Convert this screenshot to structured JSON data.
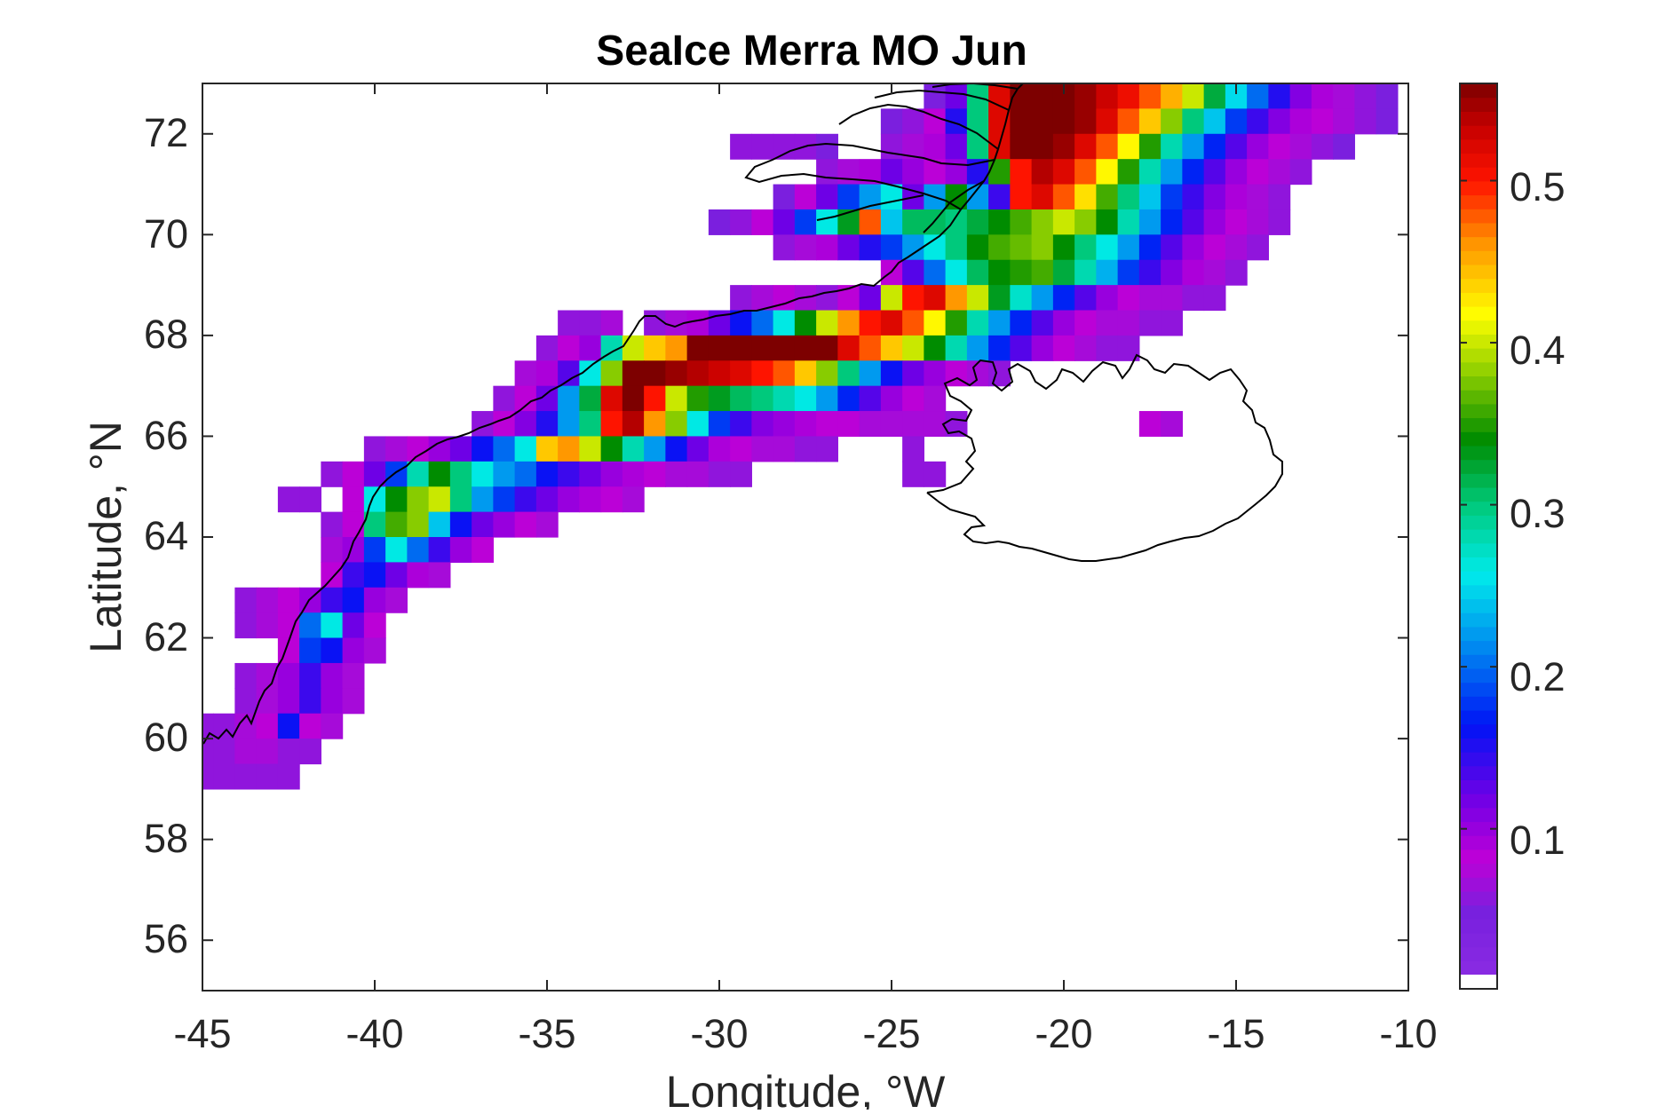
{
  "chart_data": {
    "type": "heatmap",
    "title": "SeaIce Merra MO Jun",
    "xlabel": "Longitude, °W",
    "ylabel": "Latitude, °N",
    "xlim": [
      -45,
      -10
    ],
    "ylim": [
      55,
      73
    ],
    "x_ticks": [
      "-45",
      "-40",
      "-35",
      "-30",
      "-25",
      "-20",
      "-15",
      "-10"
    ],
    "y_ticks": [
      "56",
      "58",
      "60",
      "62",
      "64",
      "66",
      "68",
      "70",
      "72"
    ],
    "colorbar": {
      "colormap": "jet-like (purple → blue → cyan → green → yellow → red → dark red)",
      "range": [
        0.01,
        0.56
      ],
      "ticks": [
        "0.1",
        "0.2",
        "0.3",
        "0.4",
        "0.5"
      ],
      "nodata_color": "#ffffff"
    },
    "grid": false,
    "cell_size_deg": {
      "lon": 0.625,
      "lat": 0.5
    },
    "cells": [
      {
        "lat": 72.75,
        "lons": [
          -23.75,
          -23.125,
          -22.5,
          -21.875,
          -21.25,
          -20.625,
          -20.0,
          -19.375,
          -18.75,
          -18.125,
          -17.5,
          -16.875,
          -16.25,
          -15.625,
          -15.0,
          -14.375,
          -13.75,
          -13.125,
          -12.5,
          -11.875,
          -11.25,
          -10.625
        ],
        "values": [
          0.05,
          0.12,
          0.3,
          0.52,
          0.56,
          0.56,
          0.56,
          0.55,
          0.53,
          0.51,
          0.48,
          0.45,
          0.4,
          0.32,
          0.25,
          0.2,
          0.15,
          0.11,
          0.09,
          0.07,
          0.06,
          0.05
        ]
      },
      {
        "lat": 72.25,
        "lons": [
          -25.0,
          -24.375,
          -23.75,
          -23.125,
          -22.5,
          -21.875,
          -21.25,
          -20.625,
          -20.0,
          -19.375,
          -18.75,
          -18.125,
          -17.5,
          -16.875,
          -16.25,
          -15.625,
          -15.0,
          -14.375,
          -13.75,
          -13.125,
          -12.5,
          -11.875,
          -11.25,
          -10.625
        ],
        "values": [
          0.05,
          0.06,
          0.08,
          0.15,
          0.3,
          0.52,
          0.56,
          0.56,
          0.56,
          0.55,
          0.52,
          0.48,
          0.44,
          0.38,
          0.3,
          0.24,
          0.18,
          0.14,
          0.11,
          0.09,
          0.08,
          0.07,
          0.06,
          0.05
        ]
      },
      {
        "lat": 71.75,
        "lons": [
          -29.375,
          -28.75,
          -28.125,
          -27.5,
          -26.875,
          -25.0,
          -24.375,
          -23.75,
          -23.125,
          -22.5,
          -21.875,
          -21.25,
          -20.625,
          -20.0,
          -19.375,
          -18.75,
          -18.125,
          -17.5,
          -16.875,
          -16.25,
          -15.625,
          -15.0,
          -14.375,
          -13.75,
          -13.125,
          -12.5,
          -11.875
        ],
        "values": [
          0.06,
          0.06,
          0.06,
          0.06,
          0.05,
          0.06,
          0.07,
          0.09,
          0.12,
          0.3,
          0.52,
          0.56,
          0.56,
          0.55,
          0.52,
          0.48,
          0.42,
          0.35,
          0.28,
          0.22,
          0.17,
          0.13,
          0.1,
          0.08,
          0.07,
          0.06,
          0.05
        ]
      },
      {
        "lat": 71.25,
        "lons": [
          -26.875,
          -26.25,
          -25.625,
          -25.0,
          -24.375,
          -23.75,
          -23.125,
          -22.5,
          -21.875,
          -21.25,
          -20.625,
          -20.0,
          -19.375,
          -18.75,
          -18.125,
          -17.5,
          -16.875,
          -16.25,
          -15.625,
          -15.0,
          -14.375,
          -13.75,
          -13.125
        ],
        "values": [
          0.06,
          0.07,
          0.09,
          0.12,
          0.1,
          0.08,
          0.1,
          0.15,
          0.35,
          0.5,
          0.54,
          0.52,
          0.48,
          0.42,
          0.35,
          0.28,
          0.22,
          0.17,
          0.13,
          0.1,
          0.08,
          0.07,
          0.06
        ]
      },
      {
        "lat": 70.75,
        "lons": [
          -28.125,
          -27.5,
          -26.875,
          -26.25,
          -25.625,
          -25.0,
          -24.375,
          -23.75,
          -23.125,
          -22.5,
          -21.875,
          -21.25,
          -20.625,
          -20.0,
          -19.375,
          -18.75,
          -18.125,
          -17.5,
          -16.875,
          -16.25,
          -15.625,
          -15.0,
          -14.375,
          -13.75
        ],
        "values": [
          0.05,
          0.08,
          0.12,
          0.18,
          0.22,
          0.26,
          0.12,
          0.22,
          0.34,
          0.22,
          0.14,
          0.5,
          0.52,
          0.48,
          0.43,
          0.36,
          0.3,
          0.24,
          0.18,
          0.14,
          0.11,
          0.09,
          0.07,
          0.06
        ]
      },
      {
        "lat": 70.25,
        "lons": [
          -30.0,
          -29.375,
          -28.75,
          -28.125,
          -27.5,
          -26.875,
          -26.25,
          -25.625,
          -25.0,
          -24.375,
          -23.75,
          -23.125,
          -22.5,
          -21.875,
          -21.25,
          -20.625,
          -20.0,
          -19.375,
          -18.75,
          -18.125,
          -17.5,
          -16.875,
          -16.25,
          -15.625,
          -15.0,
          -14.375,
          -13.75
        ],
        "values": [
          0.05,
          0.06,
          0.08,
          0.12,
          0.18,
          0.26,
          0.33,
          0.48,
          0.24,
          0.31,
          0.31,
          0.3,
          0.32,
          0.34,
          0.36,
          0.38,
          0.4,
          0.38,
          0.34,
          0.28,
          0.22,
          0.17,
          0.13,
          0.1,
          0.08,
          0.07,
          0.06
        ]
      },
      {
        "lat": 69.75,
        "lons": [
          -28.125,
          -27.5,
          -26.875,
          -26.25,
          -25.625,
          -25.0,
          -24.375,
          -23.75,
          -23.125,
          -22.5,
          -21.875,
          -21.25,
          -20.625,
          -20.0,
          -19.375,
          -18.75,
          -18.125,
          -17.5,
          -16.875,
          -16.25,
          -15.625,
          -15.0,
          -14.375
        ],
        "values": [
          0.06,
          0.07,
          0.09,
          0.12,
          0.15,
          0.18,
          0.22,
          0.26,
          0.3,
          0.34,
          0.36,
          0.37,
          0.38,
          0.34,
          0.3,
          0.26,
          0.22,
          0.17,
          0.13,
          0.1,
          0.08,
          0.07,
          0.06
        ]
      },
      {
        "lat": 69.25,
        "lons": [
          -25.0,
          -24.375,
          -23.75,
          -23.125,
          -22.5,
          -21.875,
          -21.25,
          -20.625,
          -20.0,
          -19.375,
          -18.75,
          -18.125,
          -17.5,
          -16.875,
          -16.25,
          -15.625,
          -15.0
        ],
        "values": [
          0.08,
          0.13,
          0.2,
          0.26,
          0.31,
          0.34,
          0.35,
          0.36,
          0.32,
          0.28,
          0.23,
          0.18,
          0.14,
          0.11,
          0.09,
          0.07,
          0.06
        ]
      },
      {
        "lat": 68.75,
        "lons": [
          -29.375,
          -28.75,
          -28.125,
          -27.5,
          -26.875,
          -26.25,
          -25.625,
          -25.0,
          -24.375,
          -23.75,
          -23.125,
          -22.5,
          -21.875,
          -21.25,
          -20.625,
          -20.0,
          -19.375,
          -18.75,
          -18.125,
          -17.5,
          -16.875,
          -16.25,
          -15.625
        ],
        "values": [
          0.06,
          0.07,
          0.08,
          0.07,
          0.06,
          0.08,
          0.12,
          0.4,
          0.5,
          0.52,
          0.46,
          0.4,
          0.33,
          0.27,
          0.22,
          0.17,
          0.13,
          0.1,
          0.08,
          0.07,
          0.07,
          0.06,
          0.06
        ]
      },
      {
        "lat": 68.25,
        "lons": [
          -34.375,
          -33.75,
          -33.125,
          -31.875,
          -31.25,
          -30.625,
          -30.0,
          -29.375,
          -28.75,
          -28.125,
          -27.5,
          -26.875,
          -26.25,
          -25.625,
          -25.0,
          -24.375,
          -23.75,
          -23.125,
          -22.5,
          -21.875,
          -21.25,
          -20.625,
          -20.0,
          -19.375,
          -18.75,
          -18.125,
          -17.5,
          -16.875
        ],
        "values": [
          0.06,
          0.06,
          0.07,
          0.06,
          0.07,
          0.09,
          0.12,
          0.16,
          0.2,
          0.26,
          0.34,
          0.4,
          0.46,
          0.5,
          0.52,
          0.48,
          0.42,
          0.35,
          0.28,
          0.22,
          0.17,
          0.13,
          0.1,
          0.08,
          0.07,
          0.07,
          0.06,
          0.06
        ]
      },
      {
        "lat": 67.75,
        "lons": [
          -35.0,
          -34.375,
          -33.75,
          -33.125,
          -32.5,
          -31.875,
          -31.25,
          -30.625,
          -30.0,
          -29.375,
          -28.75,
          -28.125,
          -27.5,
          -26.875,
          -26.25,
          -25.625,
          -25.0,
          -24.375,
          -23.75,
          -23.125,
          -22.5,
          -21.875,
          -21.25,
          -20.625,
          -20.0,
          -19.375,
          -18.75,
          -18.125
        ],
        "values": [
          0.06,
          0.08,
          0.1,
          0.28,
          0.4,
          0.44,
          0.46,
          0.56,
          0.56,
          0.56,
          0.56,
          0.56,
          0.56,
          0.56,
          0.52,
          0.48,
          0.44,
          0.4,
          0.34,
          0.28,
          0.22,
          0.17,
          0.13,
          0.1,
          0.08,
          0.07,
          0.06,
          0.06
        ]
      },
      {
        "lat": 67.25,
        "lons": [
          -35.625,
          -35.0,
          -34.375,
          -33.75,
          -33.125,
          -32.5,
          -31.875,
          -31.25,
          -30.625,
          -30.0,
          -29.375,
          -28.75,
          -28.125,
          -27.5,
          -26.875,
          -26.25,
          -25.625,
          -25.0,
          -24.375,
          -23.75,
          -23.125,
          -22.5,
          -21.875
        ],
        "values": [
          0.07,
          0.09,
          0.13,
          0.26,
          0.38,
          0.56,
          0.56,
          0.55,
          0.54,
          0.53,
          0.52,
          0.5,
          0.48,
          0.44,
          0.38,
          0.3,
          0.22,
          0.16,
          0.12,
          0.1,
          0.08,
          0.07,
          0.06
        ]
      },
      {
        "lat": 66.75,
        "lons": [
          -36.25,
          -35.625,
          -35.0,
          -34.375,
          -33.75,
          -33.125,
          -32.5,
          -31.875,
          -31.25,
          -30.625,
          -30.0,
          -29.375,
          -28.75,
          -28.125,
          -27.5,
          -26.875,
          -26.25,
          -25.625,
          -25.0,
          -24.375,
          -23.75
        ],
        "values": [
          0.06,
          0.08,
          0.12,
          0.22,
          0.32,
          0.52,
          0.56,
          0.5,
          0.4,
          0.35,
          0.33,
          0.31,
          0.3,
          0.28,
          0.26,
          0.22,
          0.17,
          0.13,
          0.1,
          0.08,
          0.07
        ]
      },
      {
        "lat": 66.25,
        "lons": [
          -36.875,
          -36.25,
          -35.625,
          -35.0,
          -34.375,
          -33.75,
          -33.125,
          -32.5,
          -31.875,
          -31.25,
          -30.625,
          -30.0,
          -29.375,
          -28.75,
          -28.125,
          -27.5,
          -26.875,
          -26.25,
          -25.625,
          -25.0,
          -24.375,
          -23.75,
          -23.125
        ],
        "values": [
          0.06,
          0.08,
          0.11,
          0.15,
          0.22,
          0.3,
          0.5,
          0.54,
          0.46,
          0.38,
          0.26,
          0.18,
          0.14,
          0.11,
          0.1,
          0.09,
          0.08,
          0.08,
          0.07,
          0.07,
          0.07,
          0.07,
          0.06
        ]
      },
      {
        "lat": 66.25,
        "lons": [
          -17.5,
          -16.875
        ],
        "values": [
          0.08,
          0.07
        ]
      },
      {
        "lat": 65.75,
        "lons": [
          -40.0,
          -39.375,
          -38.75,
          -38.125,
          -37.5,
          -36.875,
          -36.25,
          -35.625,
          -35.0,
          -34.375,
          -33.75,
          -33.125,
          -32.5,
          -31.875,
          -31.25,
          -30.625,
          -30.0,
          -29.375,
          -28.75,
          -28.125,
          -27.5,
          -26.875,
          -24.375
        ],
        "values": [
          0.06,
          0.07,
          0.08,
          0.1,
          0.12,
          0.16,
          0.2,
          0.26,
          0.44,
          0.46,
          0.4,
          0.34,
          0.28,
          0.22,
          0.16,
          0.12,
          0.09,
          0.08,
          0.07,
          0.07,
          0.06,
          0.06,
          0.06
        ]
      },
      {
        "lat": 65.25,
        "lons": [
          -41.25,
          -40.625,
          -40.0,
          -39.375,
          -38.75,
          -38.125,
          -37.5,
          -36.875,
          -36.25,
          -35.625,
          -35.0,
          -34.375,
          -33.75,
          -33.125,
          -32.5,
          -31.875,
          -31.25,
          -30.625,
          -30.0,
          -29.375,
          -24.375,
          -23.75
        ],
        "values": [
          0.06,
          0.08,
          0.12,
          0.18,
          0.28,
          0.34,
          0.3,
          0.26,
          0.22,
          0.2,
          0.16,
          0.14,
          0.12,
          0.1,
          0.09,
          0.08,
          0.07,
          0.07,
          0.06,
          0.06,
          0.06,
          0.06
        ]
      },
      {
        "lat": 64.75,
        "lons": [
          -42.5,
          -41.875,
          -40.625,
          -40.0,
          -39.375,
          -38.75,
          -38.125,
          -37.5,
          -36.875,
          -36.25,
          -35.625,
          -35.0,
          -34.375,
          -33.75,
          -33.125,
          -32.5
        ],
        "values": [
          0.06,
          0.06,
          0.08,
          0.26,
          0.34,
          0.38,
          0.4,
          0.3,
          0.22,
          0.18,
          0.14,
          0.12,
          0.1,
          0.09,
          0.08,
          0.07
        ]
      },
      {
        "lat": 64.25,
        "lons": [
          -41.25,
          -40.625,
          -40.0,
          -39.375,
          -38.75,
          -38.125,
          -37.5,
          -36.875,
          -36.25,
          -35.625,
          -35.0
        ],
        "values": [
          0.06,
          0.08,
          0.3,
          0.36,
          0.38,
          0.24,
          0.16,
          0.12,
          0.1,
          0.08,
          0.07
        ]
      },
      {
        "lat": 63.75,
        "lons": [
          -41.25,
          -40.625,
          -40.0,
          -39.375,
          -38.75,
          -38.125,
          -37.5,
          -36.875
        ],
        "values": [
          0.07,
          0.1,
          0.18,
          0.26,
          0.2,
          0.14,
          0.1,
          0.08
        ]
      },
      {
        "lat": 63.25,
        "lons": [
          -41.25,
          -40.625,
          -40.0,
          -39.375,
          -38.75,
          -38.125
        ],
        "values": [
          0.08,
          0.14,
          0.16,
          0.12,
          0.09,
          0.07
        ]
      },
      {
        "lat": 62.75,
        "lons": [
          -43.75,
          -43.125,
          -42.5,
          -41.875,
          -41.25,
          -40.625,
          -40.0,
          -39.375
        ],
        "values": [
          0.06,
          0.07,
          0.08,
          0.1,
          0.14,
          0.16,
          0.1,
          0.07
        ]
      },
      {
        "lat": 62.25,
        "lons": [
          -43.75,
          -43.125,
          -42.5,
          -41.875,
          -41.25,
          -40.625,
          -40.0
        ],
        "values": [
          0.06,
          0.07,
          0.08,
          0.2,
          0.26,
          0.12,
          0.08
        ]
      },
      {
        "lat": 61.75,
        "lons": [
          -42.5,
          -41.875,
          -41.25,
          -40.625,
          -40.0
        ],
        "values": [
          0.08,
          0.18,
          0.16,
          0.1,
          0.07
        ]
      },
      {
        "lat": 61.25,
        "lons": [
          -43.75,
          -43.125,
          -42.5,
          -41.875,
          -41.25,
          -40.625
        ],
        "values": [
          0.06,
          0.07,
          0.1,
          0.14,
          0.1,
          0.07
        ]
      },
      {
        "lat": 60.75,
        "lons": [
          -43.75,
          -43.125,
          -42.5,
          -41.875,
          -41.25,
          -40.625
        ],
        "values": [
          0.06,
          0.07,
          0.1,
          0.14,
          0.1,
          0.07
        ]
      },
      {
        "lat": 60.25,
        "lons": [
          -45.0,
          -44.375,
          -43.75,
          -43.125,
          -42.5,
          -41.875,
          -41.25
        ],
        "values": [
          0.06,
          0.06,
          0.07,
          0.08,
          0.16,
          0.08,
          0.07
        ]
      },
      {
        "lat": 59.75,
        "lons": [
          -45.0,
          -44.375,
          -43.75,
          -43.125,
          -42.5,
          -41.875
        ],
        "values": [
          0.06,
          0.06,
          0.07,
          0.07,
          0.06,
          0.06
        ]
      },
      {
        "lat": 59.25,
        "lons": [
          -45.0,
          -44.375,
          -43.75,
          -43.125,
          -42.5
        ],
        "values": [
          0.06,
          0.06,
          0.06,
          0.06,
          0.06
        ]
      }
    ]
  }
}
